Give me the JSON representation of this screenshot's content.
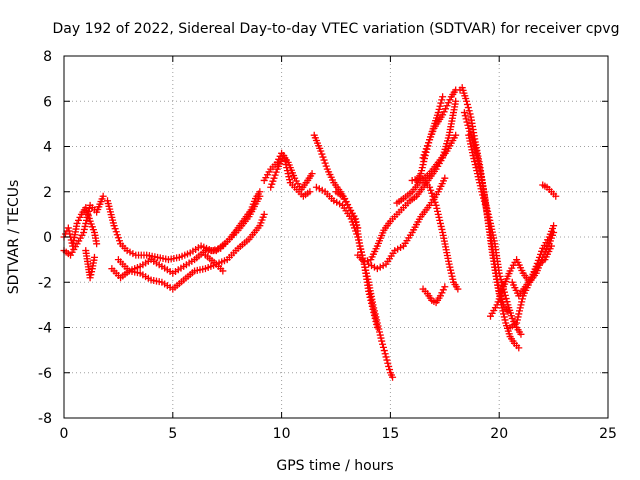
{
  "chart_data": {
    "type": "scatter",
    "title": "Day 192 of 2022, Sidereal Day-to-day VTEC variation (SDTVAR) for receiver cpvg",
    "xlabel": "GPS time / hours",
    "ylabel": "SDTVAR / TECUs",
    "xlim": [
      0,
      25
    ],
    "ylim": [
      -8,
      8
    ],
    "xticks": [
      0,
      5,
      10,
      15,
      20,
      25
    ],
    "yticks": [
      -8,
      -6,
      -4,
      -2,
      0,
      2,
      4,
      6,
      8
    ],
    "grid": true,
    "marker": "+",
    "color": "#ff0000",
    "series": [
      {
        "name": "s1",
        "x": [
          0.0,
          0.2,
          0.4,
          0.6,
          0.8,
          1.0,
          1.2,
          1.4,
          1.5
        ],
        "y": [
          0.0,
          0.4,
          -0.4,
          0.6,
          1.0,
          1.3,
          0.7,
          0.2,
          -0.3
        ]
      },
      {
        "name": "s2",
        "x": [
          0.0,
          0.3,
          0.6,
          0.9,
          1.2,
          1.5,
          1.8
        ],
        "y": [
          -0.6,
          -0.8,
          -0.3,
          0.2,
          1.4,
          1.1,
          1.8
        ]
      },
      {
        "name": "s3",
        "x": [
          1.0,
          1.1,
          1.2,
          1.3,
          1.4
        ],
        "y": [
          -0.6,
          -1.2,
          -1.8,
          -1.4,
          -0.9
        ]
      },
      {
        "name": "s4",
        "x": [
          2.0,
          2.3,
          2.6,
          2.9,
          3.3,
          3.8,
          4.3,
          4.8,
          5.3,
          5.8,
          6.3,
          6.8,
          7.2,
          7.6,
          8.0,
          8.3,
          8.6,
          8.8,
          9.0
        ],
        "y": [
          1.6,
          0.5,
          -0.3,
          -0.6,
          -0.8,
          -0.8,
          -0.9,
          -1.0,
          -0.9,
          -0.7,
          -0.4,
          -0.6,
          -0.5,
          -0.1,
          0.4,
          0.8,
          1.2,
          1.7,
          2.0
        ]
      },
      {
        "name": "s5",
        "x": [
          2.2,
          2.6,
          3.0,
          3.5,
          4.0,
          4.5,
          5.0,
          5.5,
          6.0,
          6.5,
          7.0,
          7.3
        ],
        "y": [
          -1.4,
          -1.8,
          -1.5,
          -1.6,
          -1.9,
          -2.0,
          -2.3,
          -1.9,
          -1.5,
          -1.4,
          -1.2,
          -1.5
        ]
      },
      {
        "name": "s6",
        "x": [
          2.5,
          3.0,
          3.5,
          4.0,
          4.5,
          5.0,
          5.5,
          6.0,
          6.5,
          7.0,
          7.5,
          8.0,
          8.5,
          9.0
        ],
        "y": [
          -1.0,
          -1.5,
          -1.3,
          -1.0,
          -1.3,
          -1.6,
          -1.3,
          -1.0,
          -0.6,
          -0.6,
          -0.2,
          0.3,
          0.9,
          1.8
        ]
      },
      {
        "name": "s7",
        "x": [
          6.5,
          7.0,
          7.5,
          8.0,
          8.5,
          9.0,
          9.2
        ],
        "y": [
          -0.8,
          -1.2,
          -1.0,
          -0.5,
          -0.1,
          0.5,
          1.0
        ]
      },
      {
        "name": "s8",
        "x": [
          9.2,
          9.5,
          9.8,
          10.0,
          10.3,
          10.6,
          10.9,
          11.2,
          11.4
        ],
        "y": [
          2.5,
          3.0,
          3.3,
          3.7,
          3.3,
          2.6,
          2.1,
          2.5,
          2.8
        ]
      },
      {
        "name": "s9",
        "x": [
          9.5,
          9.8,
          10.1,
          10.4,
          10.7,
          11.0,
          11.3
        ],
        "y": [
          2.2,
          3.0,
          3.6,
          2.4,
          2.1,
          1.8,
          2.0
        ]
      },
      {
        "name": "s10",
        "x": [
          11.5,
          11.8,
          12.1,
          12.4,
          12.7,
          12.9,
          13.1,
          13.3,
          13.5
        ],
        "y": [
          4.5,
          3.8,
          3.0,
          2.4,
          2.0,
          1.7,
          1.3,
          0.9,
          0.4
        ]
      },
      {
        "name": "s11",
        "x": [
          11.6,
          12.0,
          12.4,
          12.8,
          13.2,
          13.5,
          13.8,
          14.0,
          14.2,
          14.4,
          14.6,
          14.8,
          15.0,
          15.1
        ],
        "y": [
          2.2,
          2.0,
          1.6,
          1.4,
          0.8,
          0.0,
          -1.2,
          -2.0,
          -3.0,
          -3.8,
          -4.6,
          -5.3,
          -6.0,
          -6.2
        ]
      },
      {
        "name": "s12",
        "x": [
          12.5,
          12.8,
          13.1,
          13.4,
          13.6,
          13.8,
          14.0,
          14.2,
          14.4
        ],
        "y": [
          2.0,
          1.8,
          1.3,
          0.8,
          -0.4,
          -1.2,
          -2.4,
          -3.2,
          -4.0
        ]
      },
      {
        "name": "s13",
        "x": [
          13.5,
          13.8,
          14.1,
          14.4,
          14.7,
          15.0,
          15.3,
          15.6,
          15.9,
          16.2,
          16.5,
          16.8,
          17.1,
          17.4,
          17.7,
          18.0
        ],
        "y": [
          -0.8,
          -1.1,
          -1.0,
          -0.4,
          0.3,
          0.7,
          1.0,
          1.3,
          1.6,
          1.8,
          2.2,
          2.6,
          3.0,
          3.5,
          4.5,
          6.0
        ]
      },
      {
        "name": "s14",
        "x": [
          14.0,
          14.4,
          14.8,
          15.2,
          15.6,
          16.0,
          16.4,
          16.8,
          17.2,
          17.5
        ],
        "y": [
          -1.2,
          -1.4,
          -1.2,
          -0.6,
          -0.4,
          0.2,
          0.9,
          1.4,
          2.0,
          2.6
        ]
      },
      {
        "name": "s15",
        "x": [
          15.3,
          15.6,
          16.0,
          16.4,
          16.8,
          17.2,
          17.6,
          18.0
        ],
        "y": [
          1.5,
          1.7,
          2.0,
          2.5,
          2.8,
          3.3,
          3.8,
          4.5
        ]
      },
      {
        "name": "s16",
        "x": [
          16.0,
          16.4,
          16.8,
          17.1,
          17.4,
          17.7,
          17.9,
          18.1
        ],
        "y": [
          2.5,
          2.6,
          2.2,
          1.4,
          0.2,
          -1.2,
          -2.0,
          -2.3
        ]
      },
      {
        "name": "s17",
        "x": [
          16.2,
          16.4,
          16.6,
          16.8,
          17.0,
          17.2,
          17.4
        ],
        "y": [
          2.5,
          2.8,
          3.6,
          4.3,
          4.9,
          5.5,
          6.2
        ]
      },
      {
        "name": "s18",
        "x": [
          16.5,
          16.8,
          17.0,
          17.2,
          17.4,
          17.6,
          17.8,
          18.0,
          18.2
        ],
        "y": [
          3.5,
          4.3,
          4.8,
          5.1,
          5.4,
          5.8,
          6.2,
          6.5,
          6.5
        ]
      },
      {
        "name": "s19",
        "x": [
          16.5,
          16.7,
          16.9,
          17.1,
          17.3,
          17.5
        ],
        "y": [
          -2.3,
          -2.5,
          -2.8,
          -2.9,
          -2.6,
          -2.2
        ]
      },
      {
        "name": "s20",
        "x": [
          18.3,
          18.5,
          18.7,
          18.9,
          19.1,
          19.3,
          19.5,
          19.7,
          19.9,
          20.1,
          20.3,
          20.5,
          20.7,
          20.9
        ],
        "y": [
          6.6,
          6.0,
          5.3,
          4.2,
          3.2,
          2.0,
          0.6,
          -0.8,
          -2.0,
          -3.0,
          -3.8,
          -4.4,
          -4.7,
          -4.9
        ]
      },
      {
        "name": "s21",
        "x": [
          18.4,
          18.6,
          18.8,
          19.0,
          19.2,
          19.4,
          19.6,
          19.8,
          20.0,
          20.2,
          20.4,
          20.6,
          20.8,
          21.0
        ],
        "y": [
          5.5,
          4.8,
          4.3,
          3.5,
          2.5,
          1.4,
          0.6,
          -0.3,
          -1.6,
          -2.3,
          -3.0,
          -3.6,
          -4.0,
          -4.3
        ]
      },
      {
        "name": "s22",
        "x": [
          18.6,
          18.8,
          19.0,
          19.2,
          19.4,
          19.6,
          19.8,
          20.0,
          20.2,
          20.4
        ],
        "y": [
          4.5,
          3.6,
          2.8,
          2.0,
          1.3,
          0.2,
          -1.2,
          -2.4,
          -3.0,
          -3.3
        ]
      },
      {
        "name": "s23",
        "x": [
          19.6,
          19.9,
          20.2,
          20.5,
          20.8,
          21.1,
          21.4,
          21.7,
          22.0,
          22.3,
          22.5
        ],
        "y": [
          -3.5,
          -3.0,
          -2.2,
          -1.5,
          -1.0,
          -1.6,
          -2.0,
          -1.3,
          -0.5,
          0.0,
          0.5
        ]
      },
      {
        "name": "s24",
        "x": [
          20.5,
          20.8,
          21.1,
          21.4,
          21.7,
          22.0,
          22.3,
          22.5
        ],
        "y": [
          -4.0,
          -3.8,
          -2.6,
          -2.0,
          -1.6,
          -0.9,
          -0.3,
          0.2
        ]
      },
      {
        "name": "s25",
        "x": [
          20.6,
          20.9,
          21.2,
          21.5,
          21.8,
          22.1,
          22.4
        ],
        "y": [
          -2.0,
          -2.6,
          -2.2,
          -1.8,
          -1.2,
          -1.0,
          -0.4
        ]
      },
      {
        "name": "s26",
        "x": [
          22.0,
          22.2,
          22.4,
          22.6
        ],
        "y": [
          2.3,
          2.2,
          2.0,
          1.8
        ]
      }
    ]
  }
}
